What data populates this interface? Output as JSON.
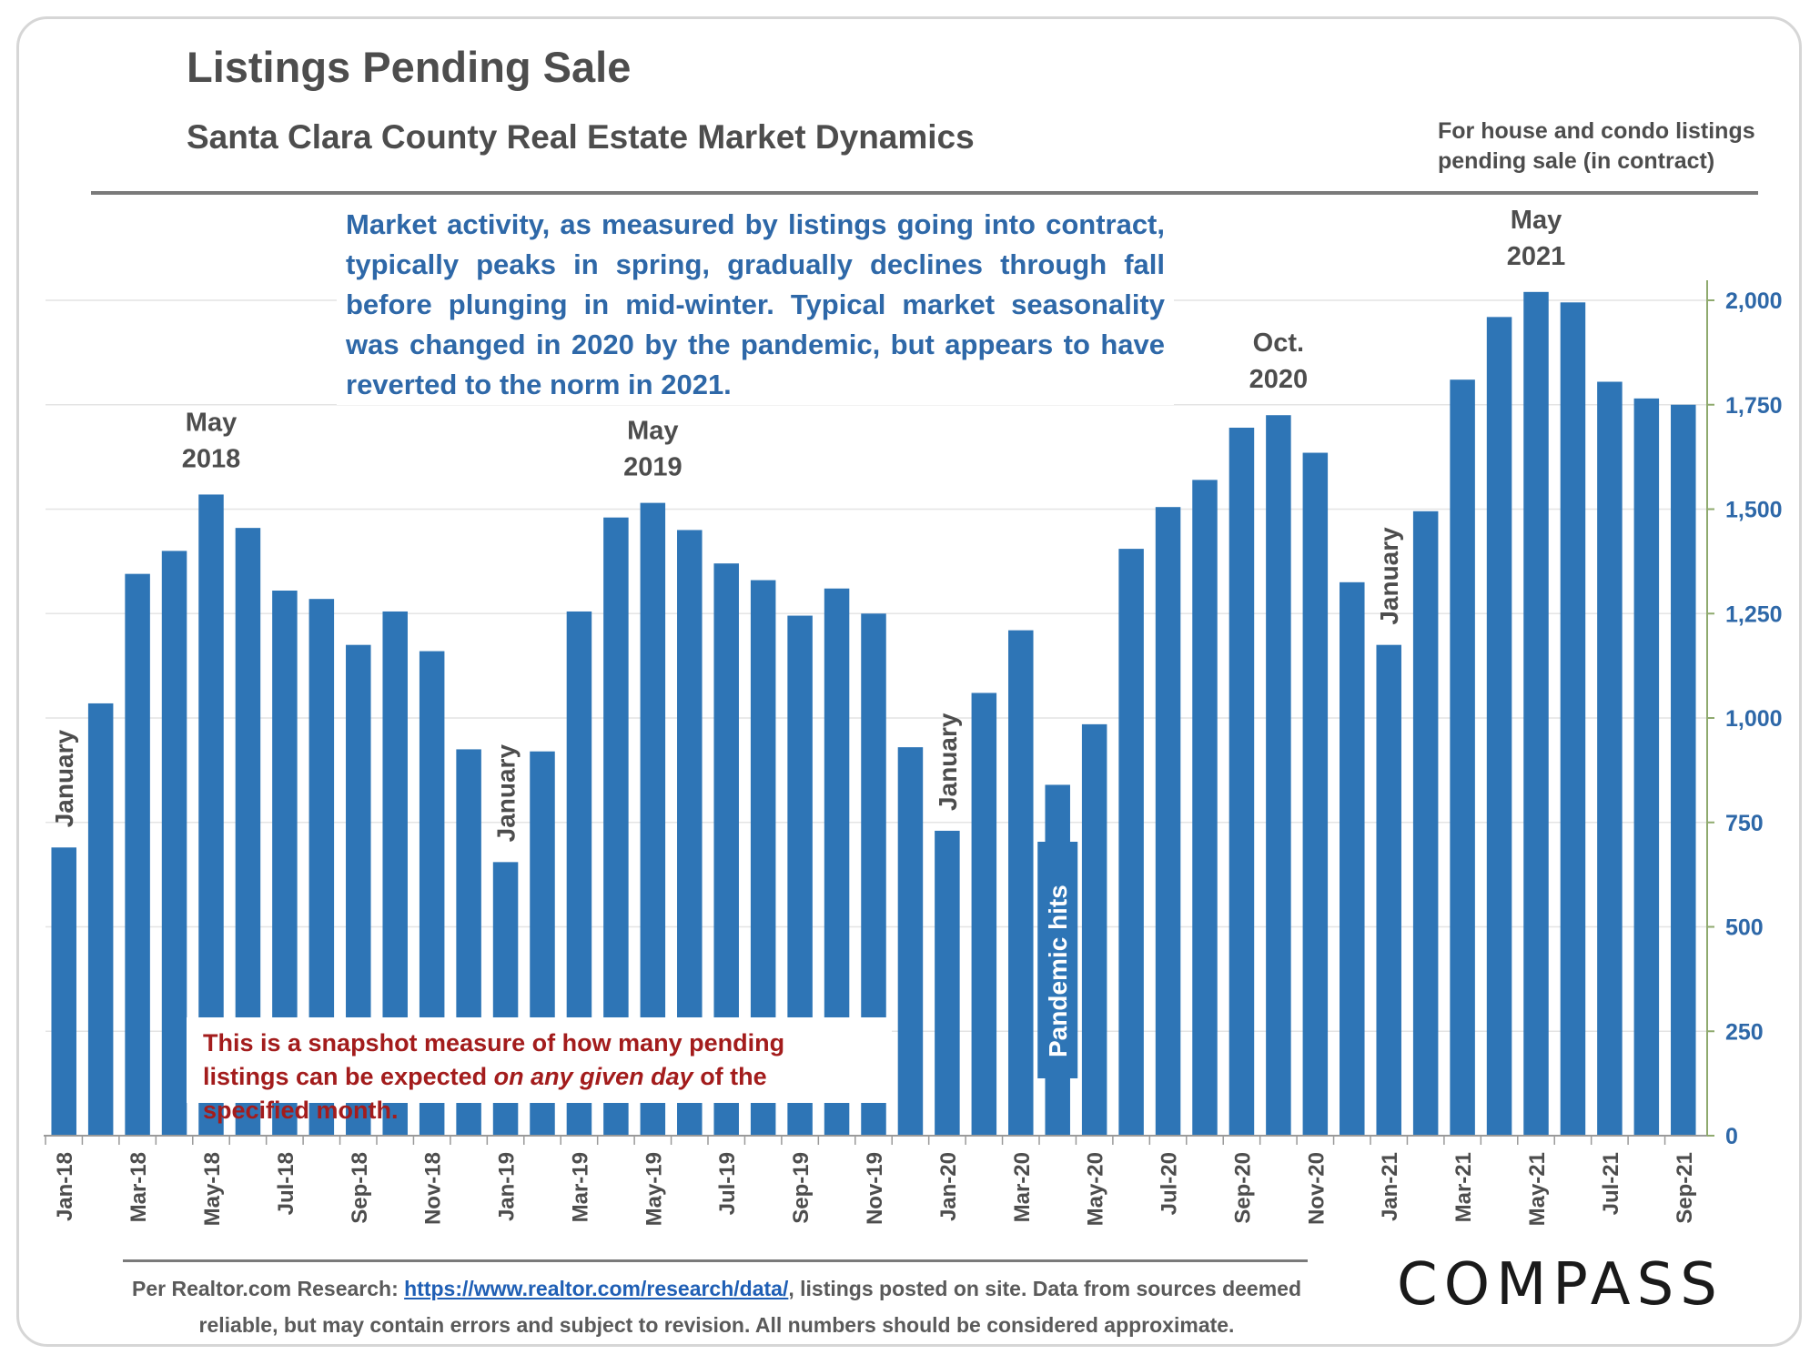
{
  "header": {
    "title": "Listings Pending Sale",
    "subtitle": "Santa Clara County Real Estate Market Dynamics",
    "scope_note": "For house and condo listings pending sale (in contract)"
  },
  "colors": {
    "bar": "#2e75b6",
    "heading": "#4d4d4d",
    "axis_text": "#2e68a8",
    "intro_text": "#2e68a8",
    "snapshot_text": "#a31c1c"
  },
  "chart_data": {
    "type": "bar",
    "categories": [
      "Jan-18",
      "Feb-18",
      "Mar-18",
      "Apr-18",
      "May-18",
      "Jun-18",
      "Jul-18",
      "Aug-18",
      "Sep-18",
      "Oct-18",
      "Nov-18",
      "Dec-18",
      "Jan-19",
      "Feb-19",
      "Mar-19",
      "Apr-19",
      "May-19",
      "Jun-19",
      "Jul-19",
      "Aug-19",
      "Sep-19",
      "Oct-19",
      "Nov-19",
      "Dec-19",
      "Jan-20",
      "Feb-20",
      "Mar-20",
      "Apr-20",
      "May-20",
      "Jun-20",
      "Jul-20",
      "Aug-20",
      "Sep-20",
      "Oct-20",
      "Nov-20",
      "Dec-20",
      "Jan-21",
      "Feb-21",
      "Mar-21",
      "Apr-21",
      "May-21",
      "Jun-21",
      "Jul-21",
      "Aug-21",
      "Sep-21"
    ],
    "shown_tick_labels": [
      "Jan-18",
      "Mar-18",
      "May-18",
      "Jul-18",
      "Sep-18",
      "Nov-18",
      "Jan-19",
      "Mar-19",
      "May-19",
      "Jul-19",
      "Sep-19",
      "Nov-19",
      "Jan-20",
      "Mar-20",
      "May-20",
      "Jul-20",
      "Sep-20",
      "Nov-20",
      "Jan-21",
      "Mar-21",
      "May-21",
      "Jul-21",
      "Sep-21"
    ],
    "values": [
      690,
      1035,
      1345,
      1400,
      1535,
      1455,
      1305,
      1285,
      1175,
      1255,
      1160,
      925,
      655,
      920,
      1255,
      1480,
      1515,
      1450,
      1370,
      1330,
      1245,
      1310,
      1250,
      930,
      730,
      1060,
      1210,
      840,
      985,
      1405,
      1505,
      1570,
      1695,
      1725,
      1635,
      1325,
      1175,
      1495,
      1810,
      1960,
      2020,
      1995,
      1805,
      1765,
      1750
    ],
    "title": "",
    "xlabel": "",
    "ylabel": "",
    "ylim": [
      0,
      2050
    ],
    "yticks": [
      0,
      250,
      500,
      750,
      1000,
      1250,
      1500,
      1750,
      2000
    ],
    "ytick_labels": [
      "0",
      "250",
      "500",
      "750",
      "1,000",
      "1,250",
      "1,500",
      "1,750",
      "2,000"
    ],
    "y_axis_side": "right",
    "grid": true,
    "legend": "none",
    "annotations": [
      {
        "text": "January",
        "category": "Jan-18",
        "vertical": true
      },
      {
        "text": "January",
        "category": "Jan-19",
        "vertical": true
      },
      {
        "text": "January",
        "category": "Jan-20",
        "vertical": true
      },
      {
        "text": "January",
        "category": "Jan-21",
        "vertical": true
      },
      {
        "text": "Pandemic hits",
        "category": "Apr-20",
        "vertical": true
      },
      {
        "text": "May 2018",
        "category": "May-18",
        "vertical": false
      },
      {
        "text": "May 2019",
        "category": "May-19",
        "vertical": false
      },
      {
        "text": "Oct. 2020",
        "category": "Oct-20",
        "vertical": false
      },
      {
        "text": "May 2021",
        "category": "May-21",
        "vertical": false
      }
    ]
  },
  "callouts": {
    "intro": "Market activity, as measured by listings going into contract, typically peaks in spring, gradually declines through fall before plunging in mid-winter. Typical market seasonality was changed in 2020 by the pandemic, but appears to have reverted to the norm in 2021.",
    "snapshot_before": "This is a snapshot measure of how many pending listings can be expected ",
    "snapshot_emphasis": "on any given day",
    "snapshot_after": " of the specified month."
  },
  "footer": {
    "source_prefix": "Per Realtor.com Research: ",
    "source_link": "https://www.realtor.com/research/data/",
    "source_suffix": ", listings posted on site. Data from sources deemed reliable, but may contain errors and subject to revision. All numbers should be considered approximate.",
    "logo": "COMPASS"
  }
}
